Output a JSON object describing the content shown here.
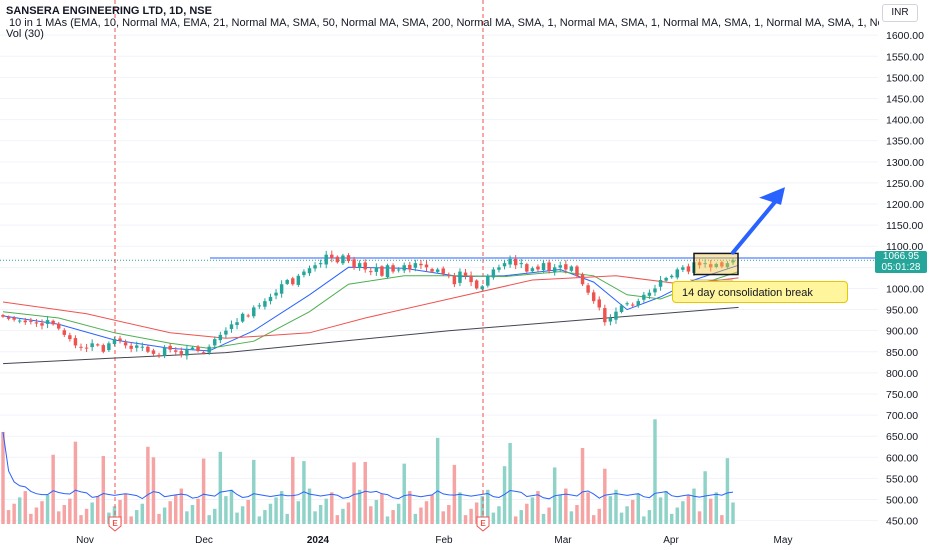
{
  "header": {
    "title": "SANSERA ENGINEERING LTD, 1D, NSE",
    "indicator": "10 in 1 MAs (EMA, 10, Normal MA, EMA, 21, Normal MA, SMA, 50, Normal MA, SMA, 200, Normal MA, SMA, 1, Normal MA, SMA, 1, Normal MA, SMA, 1, Normal MA, SMA, 1, Normal MA, SMA, 1",
    "volume": "Vol (30)",
    "currency": "INR"
  },
  "price_tag": {
    "price": "1066.95",
    "countdown": "05:01:28"
  },
  "annotation": "14 day consolidation break",
  "colors": {
    "up": "#26a69a",
    "down": "#ef5350",
    "ema10": "#2962ff",
    "ema21": "#4caf50",
    "sma50": "#ef5350",
    "sma200": "#434651",
    "resistance": "#2962ff",
    "volume_up": "#8fd3c8",
    "volume_down": "#f5a3a3",
    "box": "#f5c542",
    "arrow": "#2962ff"
  },
  "chart_data": {
    "type": "candlestick",
    "title": "SANSERA ENGINEERING LTD, 1D, NSE",
    "y_axis": {
      "ticks": [
        1600,
        1550,
        1500,
        1450,
        1400,
        1350,
        1300,
        1250,
        1200,
        1150,
        1100,
        1050,
        1000,
        950,
        900,
        850,
        800,
        750,
        700,
        650,
        600,
        550,
        500,
        450
      ],
      "range": [
        442,
        1617
      ]
    },
    "x_axis": {
      "labels": [
        "Nov",
        "Dec",
        "2024",
        "Feb",
        "Mar",
        "Apr",
        "May"
      ]
    },
    "last_price": 1066.95,
    "resistance_level": 1072,
    "earnings_markers": [
      "E",
      "E"
    ],
    "closes": [
      933,
      928,
      926,
      924,
      920,
      922,
      917,
      912,
      925,
      915,
      905,
      890,
      880,
      865,
      860,
      858,
      870,
      865,
      850,
      870,
      880,
      876,
      865,
      857,
      865,
      862,
      850,
      845,
      840,
      860,
      855,
      850,
      845,
      857,
      860,
      852,
      848,
      862,
      880,
      890,
      900,
      915,
      920,
      940,
      935,
      955,
      960,
      970,
      980,
      990,
      1010,
      1020,
      1010,
      1030,
      1040,
      1048,
      1055,
      1060,
      1080,
      1072,
      1062,
      1078,
      1065,
      1050,
      1060,
      1045,
      1040,
      1050,
      1030,
      1055,
      1040,
      1045,
      1055,
      1045,
      1060,
      1055,
      1050,
      1040,
      1045,
      1035,
      1030,
      1010,
      1040,
      1030,
      1015,
      1000,
      1005,
      1030,
      1045,
      1050,
      1060,
      1070,
      1055,
      1060,
      1040,
      1048,
      1045,
      1060,
      1042,
      1050,
      1055,
      1045,
      1052,
      1030,
      1010,
      990,
      970,
      955,
      920,
      930,
      945,
      960,
      965,
      960,
      970,
      985,
      990,
      1000,
      1020,
      1025,
      1030,
      1045,
      1050,
      1040,
      1062,
      1055,
      1060,
      1050,
      1058,
      1052,
      1060,
      1066.95
    ],
    "series": [
      {
        "name": "EMA 10",
        "x": [
          0,
          10,
          20,
          30,
          37,
          45,
          55,
          62,
          72,
          82,
          90,
          100,
          106,
          112,
          118,
          124,
          132
        ],
        "y": [
          935,
          915,
          878,
          858,
          852,
          900,
          985,
          1050,
          1048,
          1028,
          1030,
          1045,
          1015,
          950,
          980,
          1020,
          1055
        ]
      },
      {
        "name": "EMA 21",
        "x": [
          0,
          10,
          20,
          30,
          37,
          45,
          55,
          62,
          72,
          82,
          90,
          100,
          106,
          112,
          118,
          124,
          132
        ],
        "y": [
          945,
          930,
          895,
          870,
          858,
          875,
          945,
          1010,
          1030,
          1030,
          1028,
          1040,
          1030,
          985,
          975,
          1005,
          1040
        ]
      },
      {
        "name": "SMA 50",
        "x": [
          0,
          15,
          30,
          40,
          55,
          65,
          80,
          95,
          110,
          122,
          132
        ],
        "y": [
          968,
          940,
          895,
          882,
          895,
          930,
          975,
          1020,
          1030,
          1010,
          1025
        ]
      },
      {
        "name": "SMA 200",
        "x": [
          0,
          40,
          80,
          132
        ],
        "y": [
          822,
          848,
          900,
          955
        ]
      }
    ],
    "volume": {
      "axis_label": "Vol (30)"
    }
  }
}
